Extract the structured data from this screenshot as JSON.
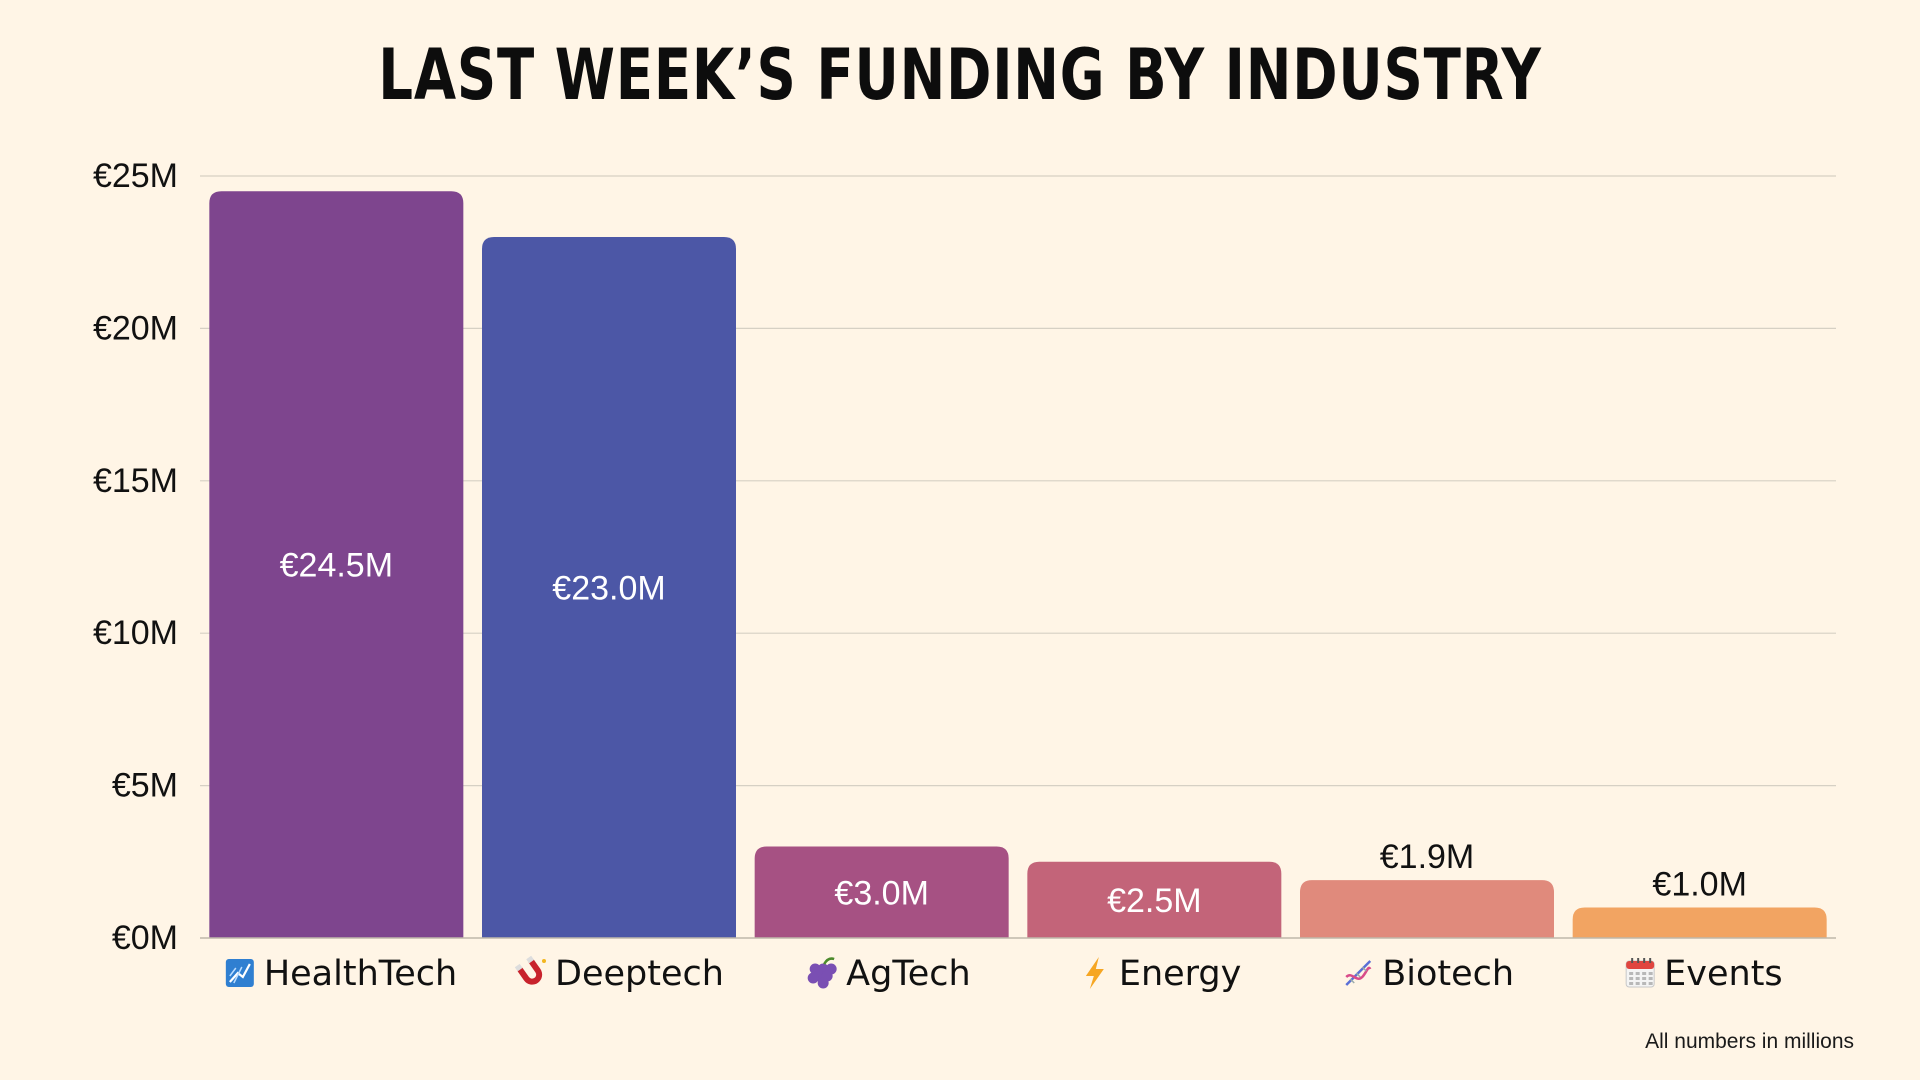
{
  "chart_data": {
    "type": "bar",
    "title": "LAST WEEK’S FUNDING BY INDUSTRY",
    "categories": [
      "HealthTech",
      "Deeptech",
      "AgTech",
      "Energy",
      "Biotech",
      "Events"
    ],
    "category_icons": [
      "chart-rising-icon",
      "magnet-icon",
      "grapes-icon",
      "lightning-icon",
      "dna-icon",
      "calendar-icon"
    ],
    "values": [
      24.5,
      23.0,
      3.0,
      2.5,
      1.9,
      1.0
    ],
    "value_labels": [
      "€24.5M",
      "€23.0M",
      "€3.0M",
      "€2.5M",
      "€1.9M",
      "€1.0M"
    ],
    "colors": [
      "#7e458e",
      "#4c57a6",
      "#a65183",
      "#c36479",
      "#e08a7c",
      "#f2a462"
    ],
    "y_ticks": [
      0,
      5,
      10,
      15,
      20,
      25
    ],
    "y_tick_labels": [
      "€0M",
      "€5M",
      "€10M",
      "€15M",
      "€20M",
      "€25M"
    ],
    "ylim": [
      0,
      25
    ],
    "grid": true,
    "legend": "none",
    "xlabel": "",
    "ylabel": ""
  },
  "footnote": "All numbers in millions"
}
